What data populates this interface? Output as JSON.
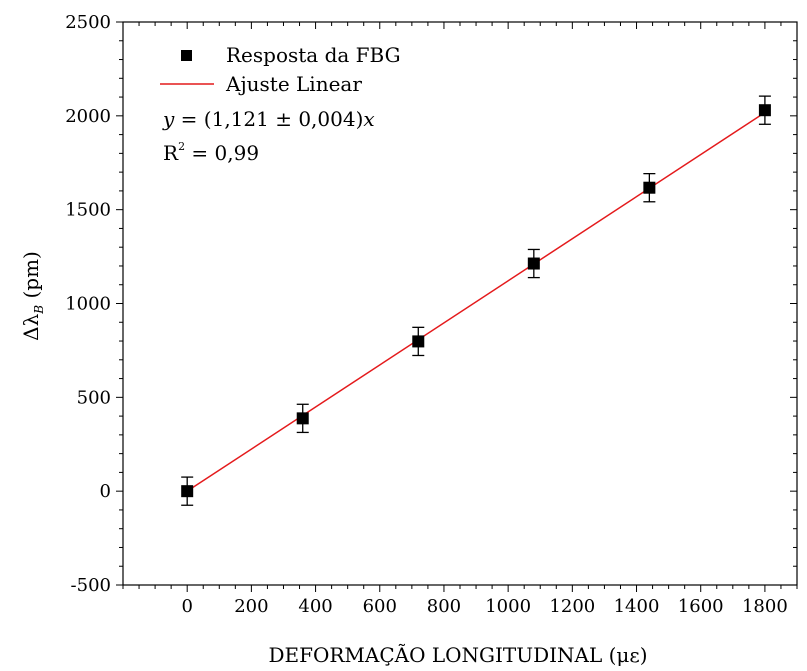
{
  "chart_data": {
    "type": "scatter",
    "xlabel": "DEFORMAÇÃO LONGITUDINAL (με)",
    "ylabel": {
      "prefix": "Δλ",
      "sub": "B",
      "suffix": " (pm)"
    },
    "xlim": [
      -200,
      1900
    ],
    "ylim": [
      -500,
      2500
    ],
    "x_ticks": [
      0,
      200,
      400,
      600,
      800,
      1000,
      1200,
      1400,
      1600,
      1800
    ],
    "y_ticks": [
      -500,
      0,
      500,
      1000,
      1500,
      2000,
      2500
    ],
    "grid": false,
    "legend_position": "top-left",
    "series": [
      {
        "name": "Resposta da FBG",
        "kind": "points-with-errorbars",
        "color": "#000000",
        "x": [
          0,
          360,
          720,
          1080,
          1440,
          1800
        ],
        "y": [
          0,
          388,
          798,
          1213,
          1617,
          2030
        ],
        "yerr": [
          75,
          75,
          75,
          75,
          75,
          75
        ]
      },
      {
        "name": "Ajuste Linear",
        "kind": "line",
        "color": "#e41a1c",
        "x": [
          0,
          1800
        ],
        "y": [
          0,
          2017.8
        ]
      }
    ],
    "annotations": {
      "equation_lhs": "y",
      "equation_mid": " = (1,121 ± 0,004)",
      "equation_var": "x",
      "r2_label": "R",
      "r2_sup": "2",
      "r2_value": " = 0,99"
    }
  }
}
